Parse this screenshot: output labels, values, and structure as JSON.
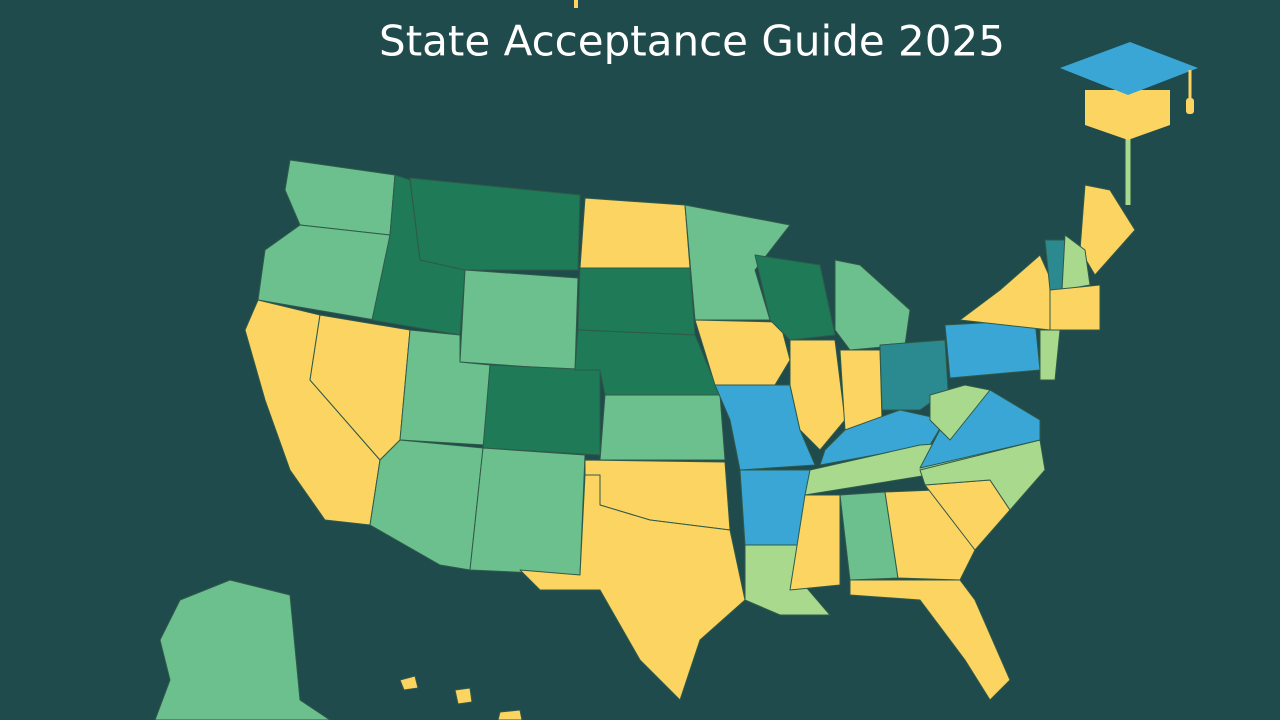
{
  "title": "State Acceptance Guide 2025"
}
